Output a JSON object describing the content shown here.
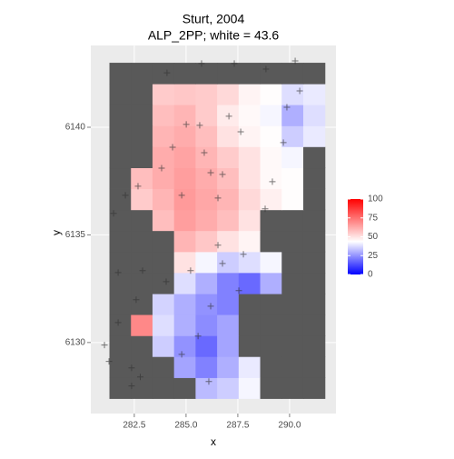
{
  "chart_data": {
    "type": "heatmap",
    "title": "Sturt, 2004",
    "subtitle": "ALP_2PP; white = 43.6",
    "x_label": "x",
    "y_label": "y",
    "xlim": [
      280.4,
      292.24
    ],
    "ylim": [
      6126.7,
      6143.8
    ],
    "xticks": [
      282.5,
      {
        "value": 285,
        "label": "285.0"
      },
      287.5,
      {
        "value": 290,
        "label": "290.0"
      }
    ],
    "yticks": [
      6130,
      6135,
      6140
    ],
    "grid": true,
    "x": [
      281.82,
      282.86,
      283.9,
      284.94,
      285.98,
      287.02,
      288.06,
      289.1,
      290.14,
      291.18
    ],
    "y": [
      6127.89,
      6128.86,
      6129.84,
      6130.81,
      6131.79,
      6132.76,
      6133.74,
      6134.71,
      6135.69,
      6136.66,
      6137.64,
      6138.61,
      6139.59,
      6140.56,
      6141.54,
      6142.51
    ],
    "values": [
      [
        null,
        null,
        null,
        null,
        32,
        35,
        42,
        null,
        null,
        null
      ],
      [
        null,
        null,
        null,
        28,
        22,
        30,
        40,
        null,
        null,
        null
      ],
      [
        null,
        null,
        35,
        25,
        18,
        28,
        null,
        null,
        null,
        null
      ],
      [
        null,
        70,
        38,
        30,
        24,
        28,
        null,
        null,
        null,
        null
      ],
      [
        null,
        null,
        36,
        30,
        25,
        22,
        null,
        null,
        null,
        null
      ],
      [
        null,
        null,
        null,
        38,
        30,
        22,
        18,
        30,
        null,
        null
      ],
      [
        null,
        null,
        null,
        50,
        42,
        35,
        38,
        42,
        null,
        null
      ],
      [
        null,
        null,
        null,
        60,
        56,
        50,
        46,
        null,
        null,
        null
      ],
      [
        null,
        null,
        58,
        65,
        62,
        58,
        50,
        null,
        null,
        null
      ],
      [
        null,
        55,
        60,
        66,
        63,
        60,
        52,
        47,
        44,
        null
      ],
      [
        null,
        58,
        62,
        65,
        62,
        58,
        50,
        45,
        44,
        null
      ],
      [
        null,
        null,
        62,
        64,
        60,
        55,
        50,
        45,
        42,
        null
      ],
      [
        null,
        null,
        60,
        62,
        58,
        50,
        46,
        44,
        35,
        40
      ],
      [
        null,
        null,
        58,
        60,
        55,
        48,
        45,
        42,
        30,
        38
      ],
      [
        null,
        null,
        55,
        56,
        55,
        52,
        46,
        44,
        38,
        40
      ],
      [
        null,
        null,
        null,
        null,
        null,
        null,
        null,
        null,
        null,
        null
      ]
    ],
    "colorscale": {
      "low": "#0000ff",
      "mid": "#ffffff",
      "high": "#ff0000",
      "midpoint": 43.6,
      "na_color": "#595959"
    },
    "clim": [
      0,
      100
    ],
    "cticks": [
      0,
      25,
      50,
      75,
      100
    ],
    "points": {
      "color": "#333333",
      "x": [
        284.08,
        285.75,
        287.33,
        288.86,
        290.27,
        290.49,
        289.87,
        287.07,
        285.01,
        285.66,
        287.64,
        289.7,
        284.35,
        285.88,
        286.19,
        286.76,
        289.17,
        283.82,
        282.68,
        284.79,
        286.54,
        288.82,
        281.5,
        282.07,
        286.54,
        287.77,
        286.76,
        285.22,
        284.04,
        281.72,
        282.9,
        286.19,
        287.55,
        282.59,
        281.72,
        281.06,
        281.28,
        282.37,
        284.79,
        285.58,
        286.1,
        282.79,
        282.37
      ],
      "y": [
        6142.53,
        6142.96,
        6142.96,
        6142.7,
        6143.08,
        6141.69,
        6140.93,
        6140.51,
        6140.13,
        6140.09,
        6139.79,
        6139.29,
        6139.07,
        6138.82,
        6137.89,
        6137.81,
        6137.47,
        6138.1,
        6137.26,
        6136.84,
        6136.71,
        6136.21,
        6136.0,
        6136.84,
        6134.52,
        6134.1,
        6133.67,
        6133.34,
        6132.83,
        6133.25,
        6133.34,
        6131.69,
        6132.41,
        6131.99,
        6130.93,
        6129.88,
        6129.12,
        6128.82,
        6129.45,
        6130.3,
        6128.19,
        6128.4,
        6127.98
      ]
    }
  }
}
